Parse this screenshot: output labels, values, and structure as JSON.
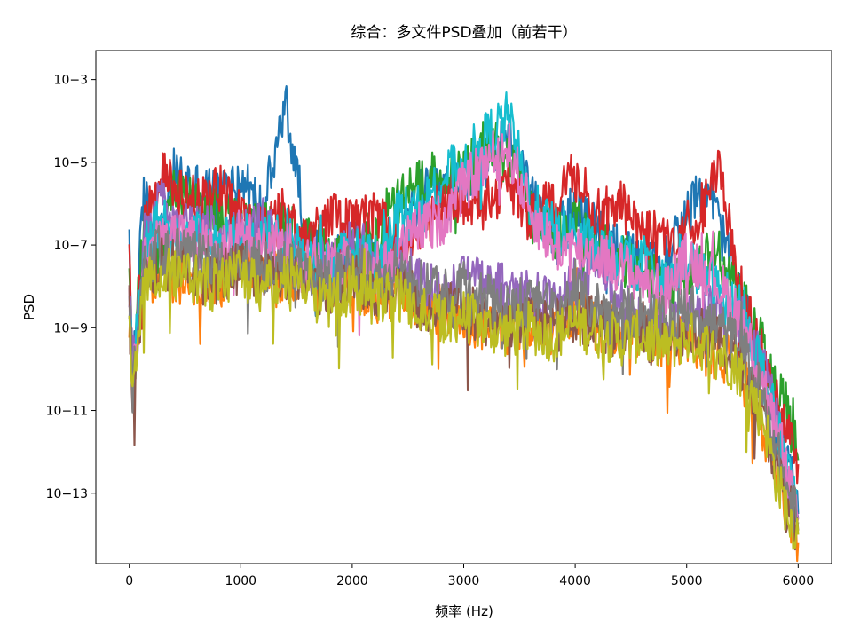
{
  "chart_data": {
    "type": "line",
    "title": "综合：多文件PSD叠加（前若干）",
    "xlabel": "频率 (Hz)",
    "ylabel": "PSD",
    "xlim": [
      -300,
      6300
    ],
    "ylim": [
      -14.7,
      -2.3
    ],
    "y_scale": "log",
    "x_ticks": [
      0,
      1000,
      2000,
      3000,
      4000,
      5000,
      6000
    ],
    "x_tick_labels": [
      "0",
      "1000",
      "2000",
      "3000",
      "4000",
      "5000",
      "6000"
    ],
    "y_ticks": [
      -3,
      -5,
      -7,
      -9,
      -11,
      -13
    ],
    "y_tick_labels": [
      "10−3",
      "10−5",
      "10−7",
      "10−9",
      "10−11",
      "10−13"
    ],
    "grid": false,
    "legend": "none",
    "x_points": [
      0,
      30,
      80,
      130,
      200,
      300,
      400,
      600,
      800,
      1000,
      1200,
      1400,
      1600,
      1800,
      2000,
      2200,
      2400,
      2600,
      2800,
      3000,
      3200,
      3400,
      3600,
      3800,
      4000,
      4200,
      4400,
      4600,
      4800,
      5000,
      5200,
      5300,
      5500,
      5700,
      5800,
      5900,
      6000
    ],
    "series": [
      {
        "color": "#1f77b4",
        "log10_values": [
          -7.2,
          -10.2,
          -8.0,
          -5.8,
          -6.4,
          -6.8,
          -5.3,
          -5.6,
          -5.8,
          -5.4,
          -6.2,
          -3.6,
          -6.9,
          -7.6,
          -6.8,
          -7.5,
          -7.3,
          -5.8,
          -5.7,
          -5.5,
          -5.0,
          -4.3,
          -5.7,
          -6.6,
          -6.2,
          -6.7,
          -7.0,
          -7.6,
          -7.4,
          -6.3,
          -5.5,
          -6.6,
          -8.4,
          -10.2,
          -11.0,
          -12.0,
          -13.5
        ]
      },
      {
        "color": "#ff7f0e",
        "log10_values": [
          -8.2,
          -10.4,
          -9.1,
          -7.4,
          -8.0,
          -7.5,
          -7.8,
          -7.8,
          -8.0,
          -7.2,
          -7.6,
          -7.8,
          -7.7,
          -7.9,
          -7.9,
          -8.3,
          -8.1,
          -8.4,
          -8.6,
          -8.7,
          -9.0,
          -9.0,
          -8.8,
          -9.2,
          -8.6,
          -9.0,
          -9.1,
          -9.0,
          -9.4,
          -9.2,
          -9.6,
          -9.6,
          -10.2,
          -11.5,
          -12.6,
          -13.4,
          -14.2
        ]
      },
      {
        "color": "#2ca02c",
        "log10_values": [
          -7.6,
          -10.0,
          -8.2,
          -6.5,
          -6.9,
          -7.2,
          -5.5,
          -6.0,
          -6.3,
          -6.4,
          -6.6,
          -6.6,
          -7.0,
          -7.2,
          -7.0,
          -6.9,
          -6.0,
          -5.5,
          -5.2,
          -5.4,
          -4.5,
          -4.9,
          -6.3,
          -6.8,
          -6.5,
          -7.0,
          -7.3,
          -7.6,
          -8.1,
          -7.8,
          -7.3,
          -7.2,
          -8.4,
          -9.6,
          -10.2,
          -11.0,
          -12.2
        ]
      },
      {
        "color": "#d62728",
        "log10_values": [
          -7.4,
          -10.3,
          -8.4,
          -6.8,
          -5.8,
          -5.3,
          -5.6,
          -6.0,
          -5.6,
          -6.3,
          -6.8,
          -6.2,
          -7.1,
          -6.2,
          -6.5,
          -6.2,
          -7.0,
          -6.8,
          -6.0,
          -5.9,
          -6.0,
          -5.5,
          -6.4,
          -6.0,
          -5.3,
          -6.3,
          -6.0,
          -6.6,
          -7.0,
          -6.6,
          -5.9,
          -5.1,
          -8.3,
          -9.9,
          -10.7,
          -11.4,
          -12.3
        ]
      },
      {
        "color": "#9467bd",
        "log10_values": [
          -8.0,
          -10.1,
          -8.6,
          -6.9,
          -6.6,
          -5.6,
          -6.6,
          -6.6,
          -6.7,
          -6.9,
          -6.5,
          -7.1,
          -7.4,
          -7.5,
          -7.0,
          -7.6,
          -7.4,
          -7.9,
          -8.2,
          -7.8,
          -8.0,
          -8.1,
          -8.2,
          -8.5,
          -7.9,
          -7.4,
          -8.3,
          -8.8,
          -8.9,
          -8.7,
          -8.6,
          -8.7,
          -8.9,
          -10.0,
          -11.2,
          -12.4,
          -13.6
        ]
      },
      {
        "color": "#17becf",
        "log10_values": [
          -8.1,
          -10.3,
          -8.8,
          -7.2,
          -6.7,
          -6.4,
          -6.8,
          -6.8,
          -7.0,
          -6.8,
          -7.0,
          -6.7,
          -7.4,
          -7.5,
          -7.1,
          -7.4,
          -6.2,
          -6.2,
          -5.4,
          -5.0,
          -4.4,
          -3.9,
          -6.0,
          -6.6,
          -6.8,
          -7.1,
          -7.4,
          -7.5,
          -8.0,
          -7.4,
          -7.8,
          -8.2,
          -8.5,
          -10.2,
          -11.3,
          -12.4,
          -13.4
        ]
      },
      {
        "color": "#e377c2",
        "log10_values": [
          -8.3,
          -10.5,
          -8.9,
          -7.5,
          -7.0,
          -6.8,
          -6.9,
          -6.9,
          -7.3,
          -6.7,
          -7.1,
          -7.0,
          -7.4,
          -7.6,
          -7.3,
          -7.6,
          -7.2,
          -6.6,
          -6.4,
          -5.6,
          -5.0,
          -4.6,
          -6.2,
          -7.0,
          -7.1,
          -7.2,
          -7.5,
          -7.8,
          -8.2,
          -7.3,
          -7.6,
          -8.0,
          -8.8,
          -10.4,
          -11.5,
          -12.6,
          -13.6
        ]
      },
      {
        "color": "#8c564b",
        "log10_values": [
          -8.6,
          -10.6,
          -9.2,
          -7.9,
          -7.6,
          -7.4,
          -7.6,
          -7.6,
          -7.8,
          -7.5,
          -7.8,
          -7.7,
          -8.0,
          -8.2,
          -7.8,
          -8.1,
          -8.0,
          -8.4,
          -8.6,
          -8.5,
          -8.8,
          -8.9,
          -8.8,
          -9.0,
          -8.7,
          -8.9,
          -9.1,
          -9.0,
          -9.3,
          -9.0,
          -9.2,
          -9.4,
          -9.9,
          -11.2,
          -12.4,
          -13.2,
          -13.9
        ]
      },
      {
        "color": "#7f7f7f",
        "log10_values": [
          -8.5,
          -10.4,
          -9.0,
          -7.7,
          -7.3,
          -7.1,
          -7.2,
          -7.3,
          -7.5,
          -7.3,
          -7.5,
          -7.4,
          -7.8,
          -7.9,
          -7.5,
          -7.8,
          -7.6,
          -8.0,
          -8.2,
          -7.9,
          -8.3,
          -8.5,
          -8.3,
          -8.6,
          -8.2,
          -8.5,
          -8.7,
          -8.6,
          -8.9,
          -8.5,
          -8.8,
          -9.0,
          -9.5,
          -10.8,
          -11.9,
          -12.9,
          -13.7
        ]
      },
      {
        "color": "#bcbd22",
        "log10_values": [
          -8.8,
          -10.7,
          -9.3,
          -8.1,
          -7.8,
          -7.6,
          -7.8,
          -7.8,
          -8.0,
          -7.7,
          -8.0,
          -7.9,
          -8.2,
          -8.4,
          -8.0,
          -8.3,
          -8.2,
          -8.6,
          -8.8,
          -8.7,
          -9.0,
          -9.1,
          -9.0,
          -9.2,
          -8.9,
          -9.1,
          -9.3,
          -9.2,
          -9.5,
          -9.2,
          -9.5,
          -9.6,
          -10.1,
          -11.3,
          -12.6,
          -13.4,
          -14.0
        ]
      }
    ]
  }
}
